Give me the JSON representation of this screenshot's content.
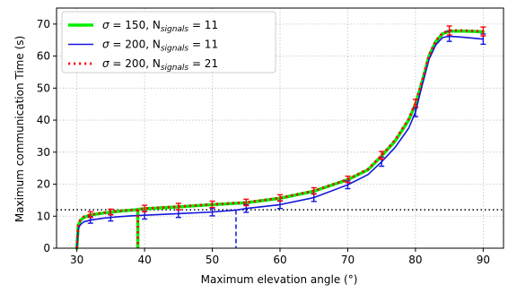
{
  "chart_data": {
    "type": "line",
    "title": "",
    "xlabel": "Maximum elevation angle (°)",
    "ylabel": "Maximum communication Time (s)",
    "xlim": [
      27,
      93
    ],
    "ylim": [
      0,
      75
    ],
    "xticks": [
      30,
      40,
      50,
      60,
      70,
      80,
      90
    ],
    "yticks": [
      0,
      10,
      20,
      30,
      40,
      50,
      60,
      70
    ],
    "grid": true,
    "legend_position": "top-left",
    "threshold_line": {
      "y": 12,
      "style": "dotted",
      "color": "#000000"
    },
    "series": [
      {
        "name_symbol": "σ",
        "name_eq1": " = 150, N",
        "name_sub": "signals",
        "name_eq2": " = 11",
        "color": "#00ee00",
        "style": "solid",
        "x": [
          30,
          30.2,
          30.5,
          31,
          32,
          34,
          36,
          38,
          39,
          39.01,
          40,
          45,
          50,
          55,
          60,
          65,
          70,
          73,
          75,
          77,
          79,
          80,
          81,
          82,
          83,
          84,
          85,
          87,
          89,
          90
        ],
        "y": [
          0,
          7,
          8.6,
          9.6,
          10.4,
          11,
          11.5,
          11.9,
          12,
          12.1,
          12.3,
          12.9,
          13.6,
          14.2,
          15.6,
          17.8,
          21.4,
          24.5,
          28.8,
          33.5,
          40,
          45,
          52,
          60,
          64.5,
          67,
          67.8,
          67.8,
          67.7,
          67.6
        ],
        "drop": {
          "x": 39,
          "from": 12,
          "to": 0
        },
        "error_x": [],
        "error_y": []
      },
      {
        "name_symbol": "σ",
        "name_eq1": " = 200, N",
        "name_sub": "signals",
        "name_eq2": " = 11",
        "color": "#1414dc",
        "style": "solid",
        "x": [
          30,
          30.2,
          30.5,
          31,
          32,
          34,
          36,
          38,
          40,
          45,
          50,
          53.5,
          55,
          60,
          65,
          70,
          73,
          75,
          77,
          79,
          80,
          81,
          82,
          83,
          84,
          85,
          87,
          89,
          90
        ],
        "y": [
          0,
          6,
          7.3,
          8.2,
          8.8,
          9.4,
          9.8,
          10.1,
          10.3,
          10.8,
          11.3,
          11.9,
          12.4,
          13.6,
          15.8,
          19.8,
          23,
          27,
          31.5,
          37.5,
          42.5,
          51,
          59,
          63.5,
          65.8,
          66.2,
          65.9,
          65.5,
          65.3
        ],
        "drop": {
          "x": 53.5,
          "from": 11.9,
          "to": 0,
          "dashed": true
        },
        "error_x": [
          32,
          35,
          40,
          45,
          50,
          55,
          60,
          65,
          70,
          75,
          80,
          85,
          90
        ],
        "error_y": [
          8.8,
          9.5,
          10.3,
          10.8,
          11.3,
          12.4,
          13.6,
          15.8,
          19.8,
          27,
          42.5,
          66.2,
          65.3
        ],
        "error_size": [
          1.0,
          1.0,
          1.2,
          1.2,
          1.2,
          1.2,
          1.2,
          1.2,
          1.2,
          1.4,
          1.4,
          1.6,
          1.6
        ]
      },
      {
        "name_symbol": "σ",
        "name_eq1": " = 200, N",
        "name_sub": "signals",
        "name_eq2": " = 21",
        "color": "#ff0000",
        "style": "dotted",
        "x": [
          30,
          30.2,
          30.5,
          31,
          32,
          34,
          36,
          38,
          39,
          39.01,
          40,
          45,
          50,
          55,
          60,
          65,
          70,
          73,
          75,
          77,
          79,
          80,
          81,
          82,
          83,
          84,
          85,
          87,
          89,
          90
        ],
        "y": [
          0,
          7.2,
          8.8,
          9.8,
          10.5,
          11.1,
          11.6,
          11.9,
          12,
          12.1,
          12.4,
          13,
          13.7,
          14.3,
          15.7,
          17.9,
          21.5,
          24.7,
          29,
          33.8,
          40.4,
          45.3,
          52.4,
          60.3,
          64.8,
          67.2,
          68,
          68,
          67.8,
          67.7
        ],
        "drop": {
          "x": 39,
          "from": 12,
          "to": 0
        },
        "error_x": [
          32,
          35,
          40,
          45,
          50,
          55,
          60,
          65,
          70,
          75,
          80,
          85,
          90
        ],
        "error_y": [
          10.5,
          11.3,
          12.4,
          13,
          13.7,
          14.3,
          15.7,
          17.9,
          21.5,
          29,
          45.3,
          68,
          67.7
        ],
        "error_size": [
          0.9,
          0.9,
          1.0,
          1.0,
          1.0,
          1.0,
          1.0,
          1.0,
          1.0,
          1.2,
          1.2,
          1.4,
          1.4
        ]
      }
    ]
  }
}
